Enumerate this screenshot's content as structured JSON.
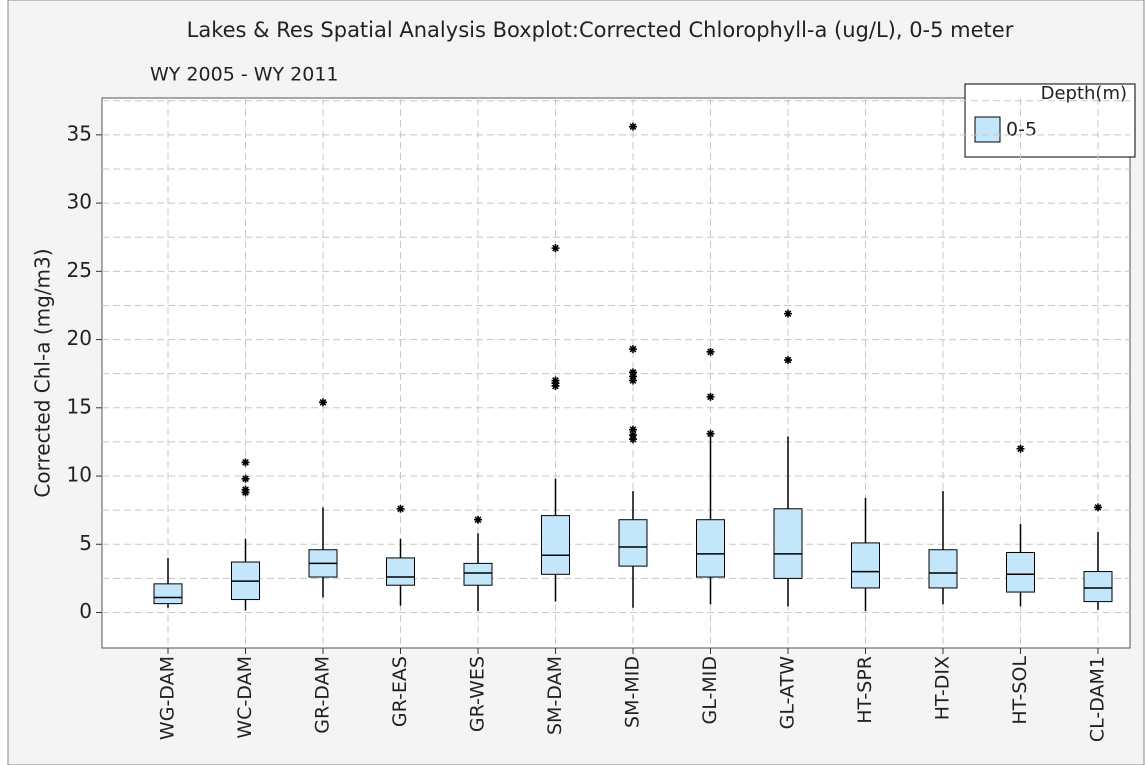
{
  "chart_data": {
    "type": "boxplot",
    "title": "Lakes & Res Spatial Analysis Boxplot:Corrected Chlorophyll-a (ug/L),  0-5 meter",
    "subtitle": "WY 2005 - WY 2011",
    "y_label": "Corrected Chl-a (mg/m3)",
    "legend_title": "Depth(m)",
    "legend_position": "top-right",
    "grid": true,
    "ylim": [
      -2.6,
      37.7
    ],
    "yticks": [
      0,
      5,
      10,
      15,
      20,
      25,
      30,
      35
    ],
    "yminor": [
      2.5,
      7.5,
      12.5,
      17.5,
      22.5,
      27.5,
      32.5,
      37.5
    ],
    "categories": [
      "WG-DAM",
      "WC-DAM",
      "GR-DAM",
      "GR-EAS",
      "GR-WES",
      "SM-DAM",
      "SM-MID",
      "GL-MID",
      "GL-ATW",
      "HT-SPR",
      "HT-DIX",
      "HT-SOL",
      "CL-DAM1"
    ],
    "series": [
      {
        "name": "0-5",
        "color": "#c4e6fa",
        "boxes": [
          {
            "whisker_low": 0.35,
            "q1": 0.65,
            "median": 1.1,
            "q3": 2.1,
            "whisker_high": 4.0,
            "outliers": []
          },
          {
            "whisker_low": 0.15,
            "q1": 0.95,
            "median": 2.3,
            "q3": 3.7,
            "whisker_high": 5.4,
            "outliers": [
              11.0,
              9.8,
              9.0,
              8.8
            ]
          },
          {
            "whisker_low": 1.1,
            "q1": 2.6,
            "median": 3.6,
            "q3": 4.6,
            "whisker_high": 7.7,
            "outliers": [
              15.4
            ]
          },
          {
            "whisker_low": 0.5,
            "q1": 2.0,
            "median": 2.6,
            "q3": 4.0,
            "whisker_high": 5.4,
            "outliers": [
              7.6
            ]
          },
          {
            "whisker_low": 0.1,
            "q1": 2.0,
            "median": 2.9,
            "q3": 3.6,
            "whisker_high": 5.8,
            "outliers": [
              6.8
            ]
          },
          {
            "whisker_low": 0.8,
            "q1": 2.8,
            "median": 4.2,
            "q3": 7.1,
            "whisker_high": 9.8,
            "outliers": [
              26.7,
              17.0,
              16.8,
              16.6
            ]
          },
          {
            "whisker_low": 0.35,
            "q1": 3.4,
            "median": 4.8,
            "q3": 6.8,
            "whisker_high": 8.9,
            "outliers": [
              35.6,
              19.3,
              17.6,
              17.3,
              17.0,
              13.4,
              13.0,
              12.7
            ]
          },
          {
            "whisker_low": 0.6,
            "q1": 2.6,
            "median": 4.3,
            "q3": 6.8,
            "whisker_high": 12.9,
            "outliers": [
              19.1,
              15.8,
              13.1
            ]
          },
          {
            "whisker_low": 0.45,
            "q1": 2.5,
            "median": 4.3,
            "q3": 7.6,
            "whisker_high": 12.9,
            "outliers": [
              21.9,
              18.5
            ]
          },
          {
            "whisker_low": 0.1,
            "q1": 1.8,
            "median": 3.0,
            "q3": 5.1,
            "whisker_high": 8.4,
            "outliers": []
          },
          {
            "whisker_low": 0.6,
            "q1": 1.8,
            "median": 2.9,
            "q3": 4.6,
            "whisker_high": 8.9,
            "outliers": []
          },
          {
            "whisker_low": 0.45,
            "q1": 1.5,
            "median": 2.8,
            "q3": 4.4,
            "whisker_high": 6.5,
            "outliers": [
              12.0
            ]
          },
          {
            "whisker_low": 0.2,
            "q1": 0.8,
            "median": 1.8,
            "q3": 3.0,
            "whisker_high": 5.9,
            "outliers": [
              7.7
            ]
          }
        ]
      }
    ]
  }
}
